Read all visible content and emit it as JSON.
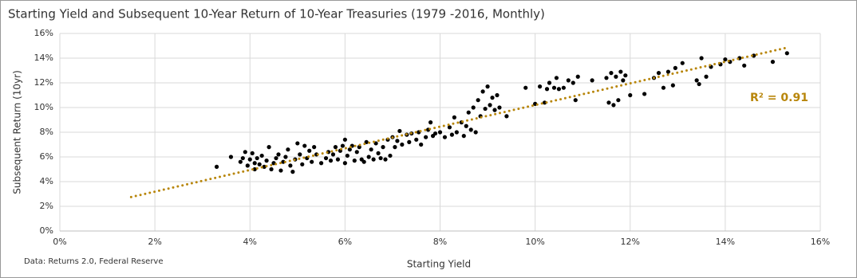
{
  "chart_data": {
    "type": "scatter",
    "title": "Starting Yield and Subsequent 10-Year Return of 10-Year Treasuries (1979 -2016, Monthly)",
    "x_label": "Starting Yield",
    "y_label": "Subsequent Return (10yr)",
    "source": "Data: Returns 2.0, Federal Reserve",
    "color": "#000000",
    "grid": true,
    "xlim": [
      0,
      16
    ],
    "ylim": [
      0,
      16
    ],
    "xticks": [
      {
        "value": 0,
        "label": "0%"
      },
      {
        "value": 2,
        "label": "2%"
      },
      {
        "value": 4,
        "label": "4%"
      },
      {
        "value": 6,
        "label": "6%"
      },
      {
        "value": 8,
        "label": "8%"
      },
      {
        "value": 10,
        "label": "10%"
      },
      {
        "value": 12,
        "label": "12%"
      },
      {
        "value": 14,
        "label": "14%"
      },
      {
        "value": 16,
        "label": "16%"
      }
    ],
    "yticks": [
      {
        "value": 0,
        "label": "0%"
      },
      {
        "value": 2,
        "label": "2%"
      },
      {
        "value": 4,
        "label": "4%"
      },
      {
        "value": 6,
        "label": "6%"
      },
      {
        "value": 8,
        "label": "8%"
      },
      {
        "value": 10,
        "label": "10%"
      },
      {
        "value": 12,
        "label": "12%"
      },
      {
        "value": 14,
        "label": "14%"
      },
      {
        "value": 16,
        "label": "16%"
      }
    ],
    "x": [
      3.3,
      3.6,
      3.8,
      3.85,
      3.9,
      3.95,
      4.0,
      4.05,
      4.1,
      4.1,
      4.15,
      4.2,
      4.25,
      4.3,
      4.35,
      4.4,
      4.45,
      4.5,
      4.55,
      4.6,
      4.65,
      4.7,
      4.75,
      4.8,
      4.85,
      4.9,
      4.95,
      5.0,
      5.05,
      5.1,
      5.15,
      5.2,
      5.25,
      5.3,
      5.35,
      5.4,
      5.5,
      5.6,
      5.65,
      5.7,
      5.75,
      5.8,
      5.85,
      5.9,
      5.95,
      6.0,
      6.0,
      6.05,
      6.1,
      6.15,
      6.2,
      6.25,
      6.3,
      6.35,
      6.4,
      6.45,
      6.5,
      6.55,
      6.6,
      6.65,
      6.7,
      6.75,
      6.8,
      6.85,
      6.9,
      6.95,
      7.0,
      7.05,
      7.1,
      7.15,
      7.2,
      7.3,
      7.35,
      7.4,
      7.5,
      7.55,
      7.6,
      7.7,
      7.75,
      7.8,
      7.85,
      7.9,
      8.0,
      8.1,
      8.2,
      8.25,
      8.3,
      8.35,
      8.45,
      8.5,
      8.55,
      8.6,
      8.65,
      8.7,
      8.75,
      8.8,
      8.85,
      8.9,
      8.95,
      9.0,
      9.05,
      9.1,
      9.15,
      9.2,
      9.25,
      9.4,
      9.8,
      10.0,
      10.1,
      10.2,
      10.25,
      10.3,
      10.4,
      10.45,
      10.5,
      10.6,
      10.7,
      10.8,
      10.85,
      10.9,
      11.2,
      11.5,
      11.55,
      11.6,
      11.65,
      11.7,
      11.75,
      11.8,
      11.85,
      11.9,
      12.0,
      12.3,
      12.5,
      12.6,
      12.7,
      12.8,
      12.9,
      12.95,
      13.1,
      13.4,
      13.45,
      13.5,
      13.6,
      13.7,
      13.9,
      14.0,
      14.1,
      14.3,
      14.4,
      14.6,
      15.0,
      15.3
    ],
    "values": [
      5.2,
      6.0,
      5.6,
      5.9,
      6.4,
      5.3,
      5.8,
      6.3,
      5.0,
      5.5,
      5.9,
      5.4,
      6.1,
      5.2,
      5.7,
      6.8,
      5.0,
      5.5,
      5.9,
      6.2,
      4.9,
      5.6,
      6.0,
      6.6,
      5.3,
      4.8,
      5.8,
      7.1,
      6.2,
      5.4,
      6.9,
      5.9,
      6.5,
      5.6,
      6.8,
      6.2,
      5.5,
      5.9,
      6.4,
      5.7,
      6.2,
      6.8,
      5.8,
      6.5,
      6.9,
      7.4,
      5.5,
      6.1,
      6.6,
      6.9,
      5.7,
      6.4,
      6.8,
      5.8,
      5.6,
      7.2,
      6.0,
      6.6,
      5.8,
      7.1,
      6.3,
      5.9,
      6.8,
      5.8,
      7.4,
      6.1,
      7.6,
      6.8,
      7.3,
      8.1,
      7.0,
      7.8,
      7.2,
      7.9,
      7.4,
      8.0,
      7.0,
      7.6,
      8.2,
      8.8,
      7.7,
      7.9,
      8.0,
      7.6,
      8.4,
      7.8,
      9.2,
      8.0,
      8.8,
      7.7,
      8.5,
      9.6,
      8.2,
      10.0,
      8.0,
      10.6,
      9.3,
      11.3,
      9.9,
      11.7,
      10.2,
      10.8,
      9.8,
      11.0,
      10.0,
      9.3,
      11.6,
      10.3,
      11.7,
      10.4,
      11.5,
      12.0,
      11.6,
      12.4,
      11.5,
      11.6,
      12.2,
      12.0,
      10.6,
      12.5,
      12.2,
      12.4,
      10.4,
      12.8,
      10.2,
      12.5,
      10.6,
      12.9,
      12.2,
      12.6,
      11.0,
      11.1,
      12.4,
      12.8,
      11.6,
      12.9,
      11.8,
      13.2,
      13.6,
      12.2,
      11.9,
      14.0,
      12.5,
      13.3,
      13.5,
      13.9,
      13.7,
      14.0,
      13.4,
      14.2,
      13.7,
      14.4
    ],
    "trendline": {
      "x": [
        1.5,
        15.3
      ],
      "y": [
        2.75,
        14.85
      ],
      "color": "#b8860b",
      "label": "R² = 0.91"
    }
  }
}
